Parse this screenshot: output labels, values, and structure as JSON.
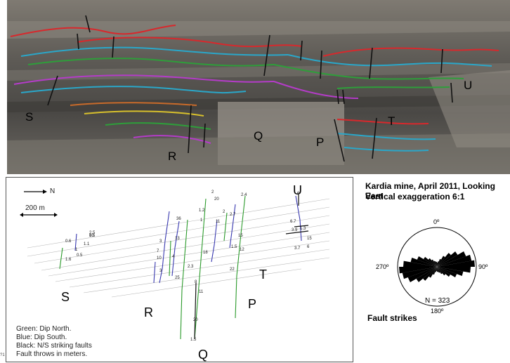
{
  "photo": {
    "block_labels": [
      "S",
      "R",
      "Q",
      "P",
      "T",
      "U"
    ]
  },
  "map": {
    "north_arrow": "N",
    "scale_label": "200 m",
    "block_labels": [
      "S",
      "R",
      "Q",
      "P",
      "T",
      "U"
    ],
    "fault_throws": [
      "0.5",
      "0.6",
      "1.1",
      "2.5",
      "1",
      "0.5",
      "1.6",
      "36",
      "13",
      "3",
      "7",
      "10",
      "3",
      "4",
      "25",
      "1.2",
      "2",
      "20",
      "1",
      "2",
      "11",
      "2.4",
      "2.7",
      "15",
      "1.5",
      "12",
      "6",
      "6.7",
      "3.9",
      "1.3",
      "3.7",
      "15",
      "6",
      "18",
      "2.3",
      "8",
      "11",
      "20",
      "1.5",
      "22",
      "10"
    ],
    "legend": [
      "Green: Dip North.",
      "Blue: Dip South.",
      "Black: N/S striking faults",
      "Fault throws in meters."
    ],
    "corner_note": "?1"
  },
  "caption": {
    "title_line1": "Kardia mine, April 2011, Looking East",
    "title_line2": "Vertical exaggeration 6:1"
  },
  "rose": {
    "n_label": "N = 323",
    "tick_0": "0º",
    "tick_90": "90º",
    "tick_180": "180º",
    "tick_270": "270º",
    "caption": "Fault strikes"
  },
  "colors": {
    "bed_red": "#d8282c",
    "bed_cyan": "#2aa7c9",
    "bed_green": "#2e9e3a",
    "bed_magenta": "#b43cc8",
    "bed_yellow": "#d8c02c",
    "bed_orange": "#c86a2a",
    "fault_green": "#2a9a2a",
    "fault_blue": "#3a3ab0"
  }
}
